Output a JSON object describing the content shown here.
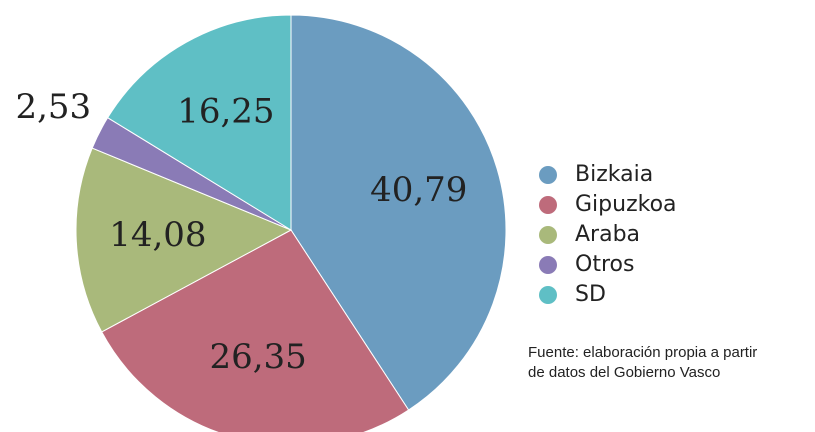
{
  "chart_data": {
    "type": "pie",
    "categories": [
      "Bizkaia",
      "Gipuzkoa",
      "Araba",
      "Otros",
      "SD"
    ],
    "values": [
      40.79,
      26.35,
      14.08,
      2.53,
      16.25
    ],
    "value_labels": [
      "40,79",
      "26,35",
      "14,08",
      "2,53",
      "16,25"
    ],
    "colors": [
      "#6b9cc0",
      "#be6b7b",
      "#a9b97b",
      "#8a7bb6",
      "#5fbfc5"
    ],
    "legend": "right",
    "note": [
      "Fuente: elaboración propia a partir",
      "de datos del Gobierno Vasco"
    ]
  }
}
